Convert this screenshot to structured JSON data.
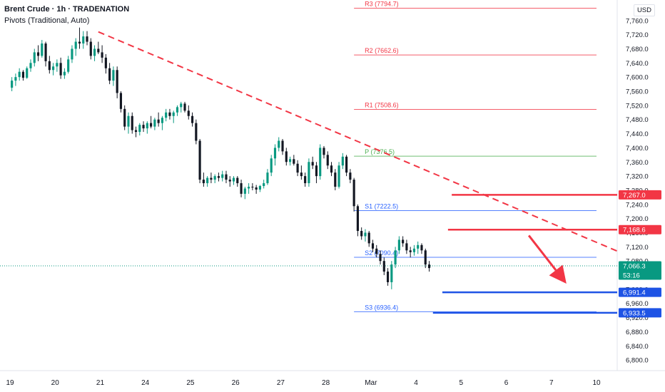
{
  "legend": {
    "symbol_line": "Brent Crude · 1h · TRADENATION",
    "indicator_line": "Pivots (Traditional, Auto)"
  },
  "currency": "USD",
  "chart_data": {
    "type": "candlestick",
    "ylim": [
      6770,
      7818
    ],
    "y_ticks": [
      6800,
      6840,
      6880,
      6920,
      6960,
      7000,
      7040,
      7080,
      7120,
      7160,
      7200,
      7240,
      7280,
      7320,
      7360,
      7400,
      7440,
      7480,
      7520,
      7560,
      7600,
      7640,
      7680,
      7720,
      7760
    ],
    "x_ticks": [
      {
        "label": "19",
        "t": 0.05
      },
      {
        "label": "20",
        "t": 1.25
      },
      {
        "label": "21",
        "t": 2.45
      },
      {
        "label": "24",
        "t": 3.65
      },
      {
        "label": "25",
        "t": 4.85
      },
      {
        "label": "26",
        "t": 6.05
      },
      {
        "label": "27",
        "t": 7.25
      },
      {
        "label": "28",
        "t": 8.45
      },
      {
        "label": "Mar",
        "t": 9.65
      },
      {
        "label": "4",
        "t": 10.85
      },
      {
        "label": "5",
        "t": 12.05
      },
      {
        "label": "6",
        "t": 13.25
      },
      {
        "label": "7",
        "t": 14.45
      },
      {
        "label": "10",
        "t": 15.65
      }
    ],
    "pivots": [
      {
        "label": "R3 (7794.7)",
        "value": 7794.7,
        "color": "#f23645"
      },
      {
        "label": "R2 (7662.6)",
        "value": 7662.6,
        "color": "#f23645"
      },
      {
        "label": "R1 (7508.6)",
        "value": 7508.6,
        "color": "#f23645"
      },
      {
        "label": "P (7376.5)",
        "value": 7376.5,
        "color": "#4caf50"
      },
      {
        "label": "S1 (7222.5)",
        "value": 7222.5,
        "color": "#2962ff"
      },
      {
        "label": "S2 (7090.4)",
        "value": 7090.4,
        "color": "#2962ff"
      },
      {
        "label": "S3 (6936.4)",
        "value": 6936.4,
        "color": "#2962ff"
      }
    ],
    "pivot_span_t": [
      9.2,
      15.65
    ],
    "resistance_lines": [
      {
        "value": 7267.0,
        "from_t": 11.8,
        "label": "7,267.0",
        "color": "#f23645"
      },
      {
        "value": 7168.6,
        "from_t": 11.7,
        "label": "7,168.6",
        "color": "#f23645"
      }
    ],
    "support_lines": [
      {
        "value": 6991.4,
        "from_t": 11.55,
        "label": "6,991.4",
        "color": "#1e53e5"
      },
      {
        "value": 6933.5,
        "from_t": 11.3,
        "label": "6,933.5",
        "color": "#1e53e5"
      }
    ],
    "trendline": {
      "from": {
        "t": 2.4,
        "value": 7728
      },
      "to": {
        "t": 16.2,
        "value": 7108
      },
      "color": "#f23645"
    },
    "last_price": {
      "value": 7066.3,
      "label": "7,066.3",
      "countdown": "53:16",
      "color": "#089981"
    },
    "arrow": {
      "from": {
        "t": 13.85,
        "value": 7152
      },
      "to": {
        "t": 14.85,
        "value": 7016
      },
      "color": "#f23645"
    },
    "candles_t_start": 0.1,
    "candles_t_step": 0.1,
    "candles": [
      [
        7570,
        7600,
        7560,
        7590
      ],
      [
        7590,
        7610,
        7575,
        7600
      ],
      [
        7600,
        7625,
        7590,
        7615
      ],
      [
        7615,
        7620,
        7590,
        7598
      ],
      [
        7598,
        7630,
        7595,
        7625
      ],
      [
        7625,
        7650,
        7615,
        7640
      ],
      [
        7640,
        7680,
        7630,
        7670
      ],
      [
        7670,
        7690,
        7645,
        7660
      ],
      [
        7660,
        7705,
        7655,
        7695
      ],
      [
        7695,
        7700,
        7630,
        7645
      ],
      [
        7645,
        7660,
        7610,
        7620
      ],
      [
        7620,
        7640,
        7605,
        7630
      ],
      [
        7630,
        7650,
        7615,
        7640
      ],
      [
        7640,
        7655,
        7595,
        7605
      ],
      [
        7605,
        7625,
        7595,
        7615
      ],
      [
        7615,
        7660,
        7610,
        7650
      ],
      [
        7650,
        7690,
        7640,
        7680
      ],
      [
        7680,
        7710,
        7660,
        7700
      ],
      [
        7700,
        7740,
        7680,
        7695
      ],
      [
        7695,
        7730,
        7680,
        7715
      ],
      [
        7715,
        7730,
        7690,
        7700
      ],
      [
        7700,
        7710,
        7650,
        7660
      ],
      [
        7660,
        7690,
        7645,
        7680
      ],
      [
        7680,
        7700,
        7665,
        7670
      ],
      [
        7670,
        7690,
        7640,
        7655
      ],
      [
        7655,
        7665,
        7610,
        7625
      ],
      [
        7625,
        7640,
        7580,
        7590
      ],
      [
        7590,
        7630,
        7575,
        7620
      ],
      [
        7620,
        7630,
        7540,
        7555
      ],
      [
        7555,
        7560,
        7500,
        7510
      ],
      [
        7510,
        7520,
        7450,
        7460
      ],
      [
        7460,
        7500,
        7440,
        7490
      ],
      [
        7490,
        7500,
        7440,
        7450
      ],
      [
        7450,
        7460,
        7430,
        7445
      ],
      [
        7445,
        7470,
        7435,
        7465
      ],
      [
        7465,
        7475,
        7445,
        7455
      ],
      [
        7455,
        7475,
        7440,
        7470
      ],
      [
        7470,
        7490,
        7455,
        7460
      ],
      [
        7460,
        7485,
        7450,
        7480
      ],
      [
        7480,
        7500,
        7460,
        7470
      ],
      [
        7470,
        7490,
        7450,
        7485
      ],
      [
        7485,
        7510,
        7475,
        7500
      ],
      [
        7500,
        7510,
        7480,
        7490
      ],
      [
        7490,
        7505,
        7470,
        7500
      ],
      [
        7500,
        7520,
        7490,
        7515
      ],
      [
        7515,
        7530,
        7500,
        7525
      ],
      [
        7525,
        7530,
        7500,
        7505
      ],
      [
        7505,
        7520,
        7480,
        7490
      ],
      [
        7490,
        7500,
        7460,
        7470
      ],
      [
        7470,
        7480,
        7410,
        7420
      ],
      [
        7420,
        7425,
        7300,
        7310
      ],
      [
        7310,
        7330,
        7290,
        7300
      ],
      [
        7300,
        7320,
        7290,
        7315
      ],
      [
        7315,
        7330,
        7300,
        7310
      ],
      [
        7310,
        7325,
        7300,
        7320
      ],
      [
        7320,
        7330,
        7305,
        7315
      ],
      [
        7315,
        7335,
        7305,
        7325
      ],
      [
        7325,
        7335,
        7300,
        7310
      ],
      [
        7310,
        7320,
        7290,
        7305
      ],
      [
        7305,
        7320,
        7295,
        7315
      ],
      [
        7315,
        7320,
        7290,
        7300
      ],
      [
        7300,
        7310,
        7260,
        7270
      ],
      [
        7270,
        7290,
        7255,
        7285
      ],
      [
        7285,
        7300,
        7270,
        7290
      ],
      [
        7290,
        7300,
        7280,
        7288
      ],
      [
        7288,
        7295,
        7270,
        7282
      ],
      [
        7282,
        7295,
        7275,
        7292
      ],
      [
        7292,
        7310,
        7285,
        7300
      ],
      [
        7300,
        7340,
        7295,
        7330
      ],
      [
        7330,
        7380,
        7320,
        7370
      ],
      [
        7370,
        7410,
        7350,
        7400
      ],
      [
        7400,
        7430,
        7390,
        7420
      ],
      [
        7420,
        7425,
        7380,
        7390
      ],
      [
        7390,
        7400,
        7350,
        7360
      ],
      [
        7360,
        7375,
        7350,
        7368
      ],
      [
        7368,
        7380,
        7350,
        7355
      ],
      [
        7355,
        7365,
        7320,
        7330
      ],
      [
        7330,
        7350,
        7310,
        7320
      ],
      [
        7320,
        7330,
        7290,
        7300
      ],
      [
        7300,
        7370,
        7290,
        7360
      ],
      [
        7360,
        7375,
        7340,
        7350
      ],
      [
        7350,
        7360,
        7300,
        7320
      ],
      [
        7320,
        7410,
        7310,
        7400
      ],
      [
        7400,
        7405,
        7370,
        7380
      ],
      [
        7380,
        7390,
        7340,
        7350
      ],
      [
        7350,
        7360,
        7320,
        7330
      ],
      [
        7330,
        7340,
        7280,
        7290
      ],
      [
        7290,
        7360,
        7285,
        7350
      ],
      [
        7350,
        7385,
        7340,
        7375
      ],
      [
        7375,
        7380,
        7320,
        7330
      ],
      [
        7330,
        7340,
        7300,
        7310
      ],
      [
        7310,
        7315,
        7220,
        7235
      ],
      [
        7235,
        7240,
        7150,
        7165
      ],
      [
        7165,
        7175,
        7140,
        7150
      ],
      [
        7150,
        7170,
        7135,
        7160
      ],
      [
        7160,
        7165,
        7120,
        7130
      ],
      [
        7130,
        7140,
        7105,
        7115
      ],
      [
        7115,
        7125,
        7090,
        7100
      ],
      [
        7100,
        7110,
        7070,
        7080
      ],
      [
        7080,
        7090,
        7040,
        7050
      ],
      [
        7050,
        7060,
        7010,
        7020
      ],
      [
        7020,
        7080,
        7000,
        7070
      ],
      [
        7070,
        7120,
        7060,
        7110
      ],
      [
        7110,
        7150,
        7100,
        7140
      ],
      [
        7140,
        7150,
        7120,
        7130
      ],
      [
        7130,
        7140,
        7100,
        7110
      ],
      [
        7110,
        7120,
        7090,
        7105
      ],
      [
        7105,
        7125,
        7095,
        7115
      ],
      [
        7115,
        7135,
        7100,
        7125
      ],
      [
        7125,
        7130,
        7100,
        7110
      ],
      [
        7110,
        7115,
        7060,
        7070
      ],
      [
        7070,
        7080,
        7050,
        7060
      ]
    ]
  }
}
